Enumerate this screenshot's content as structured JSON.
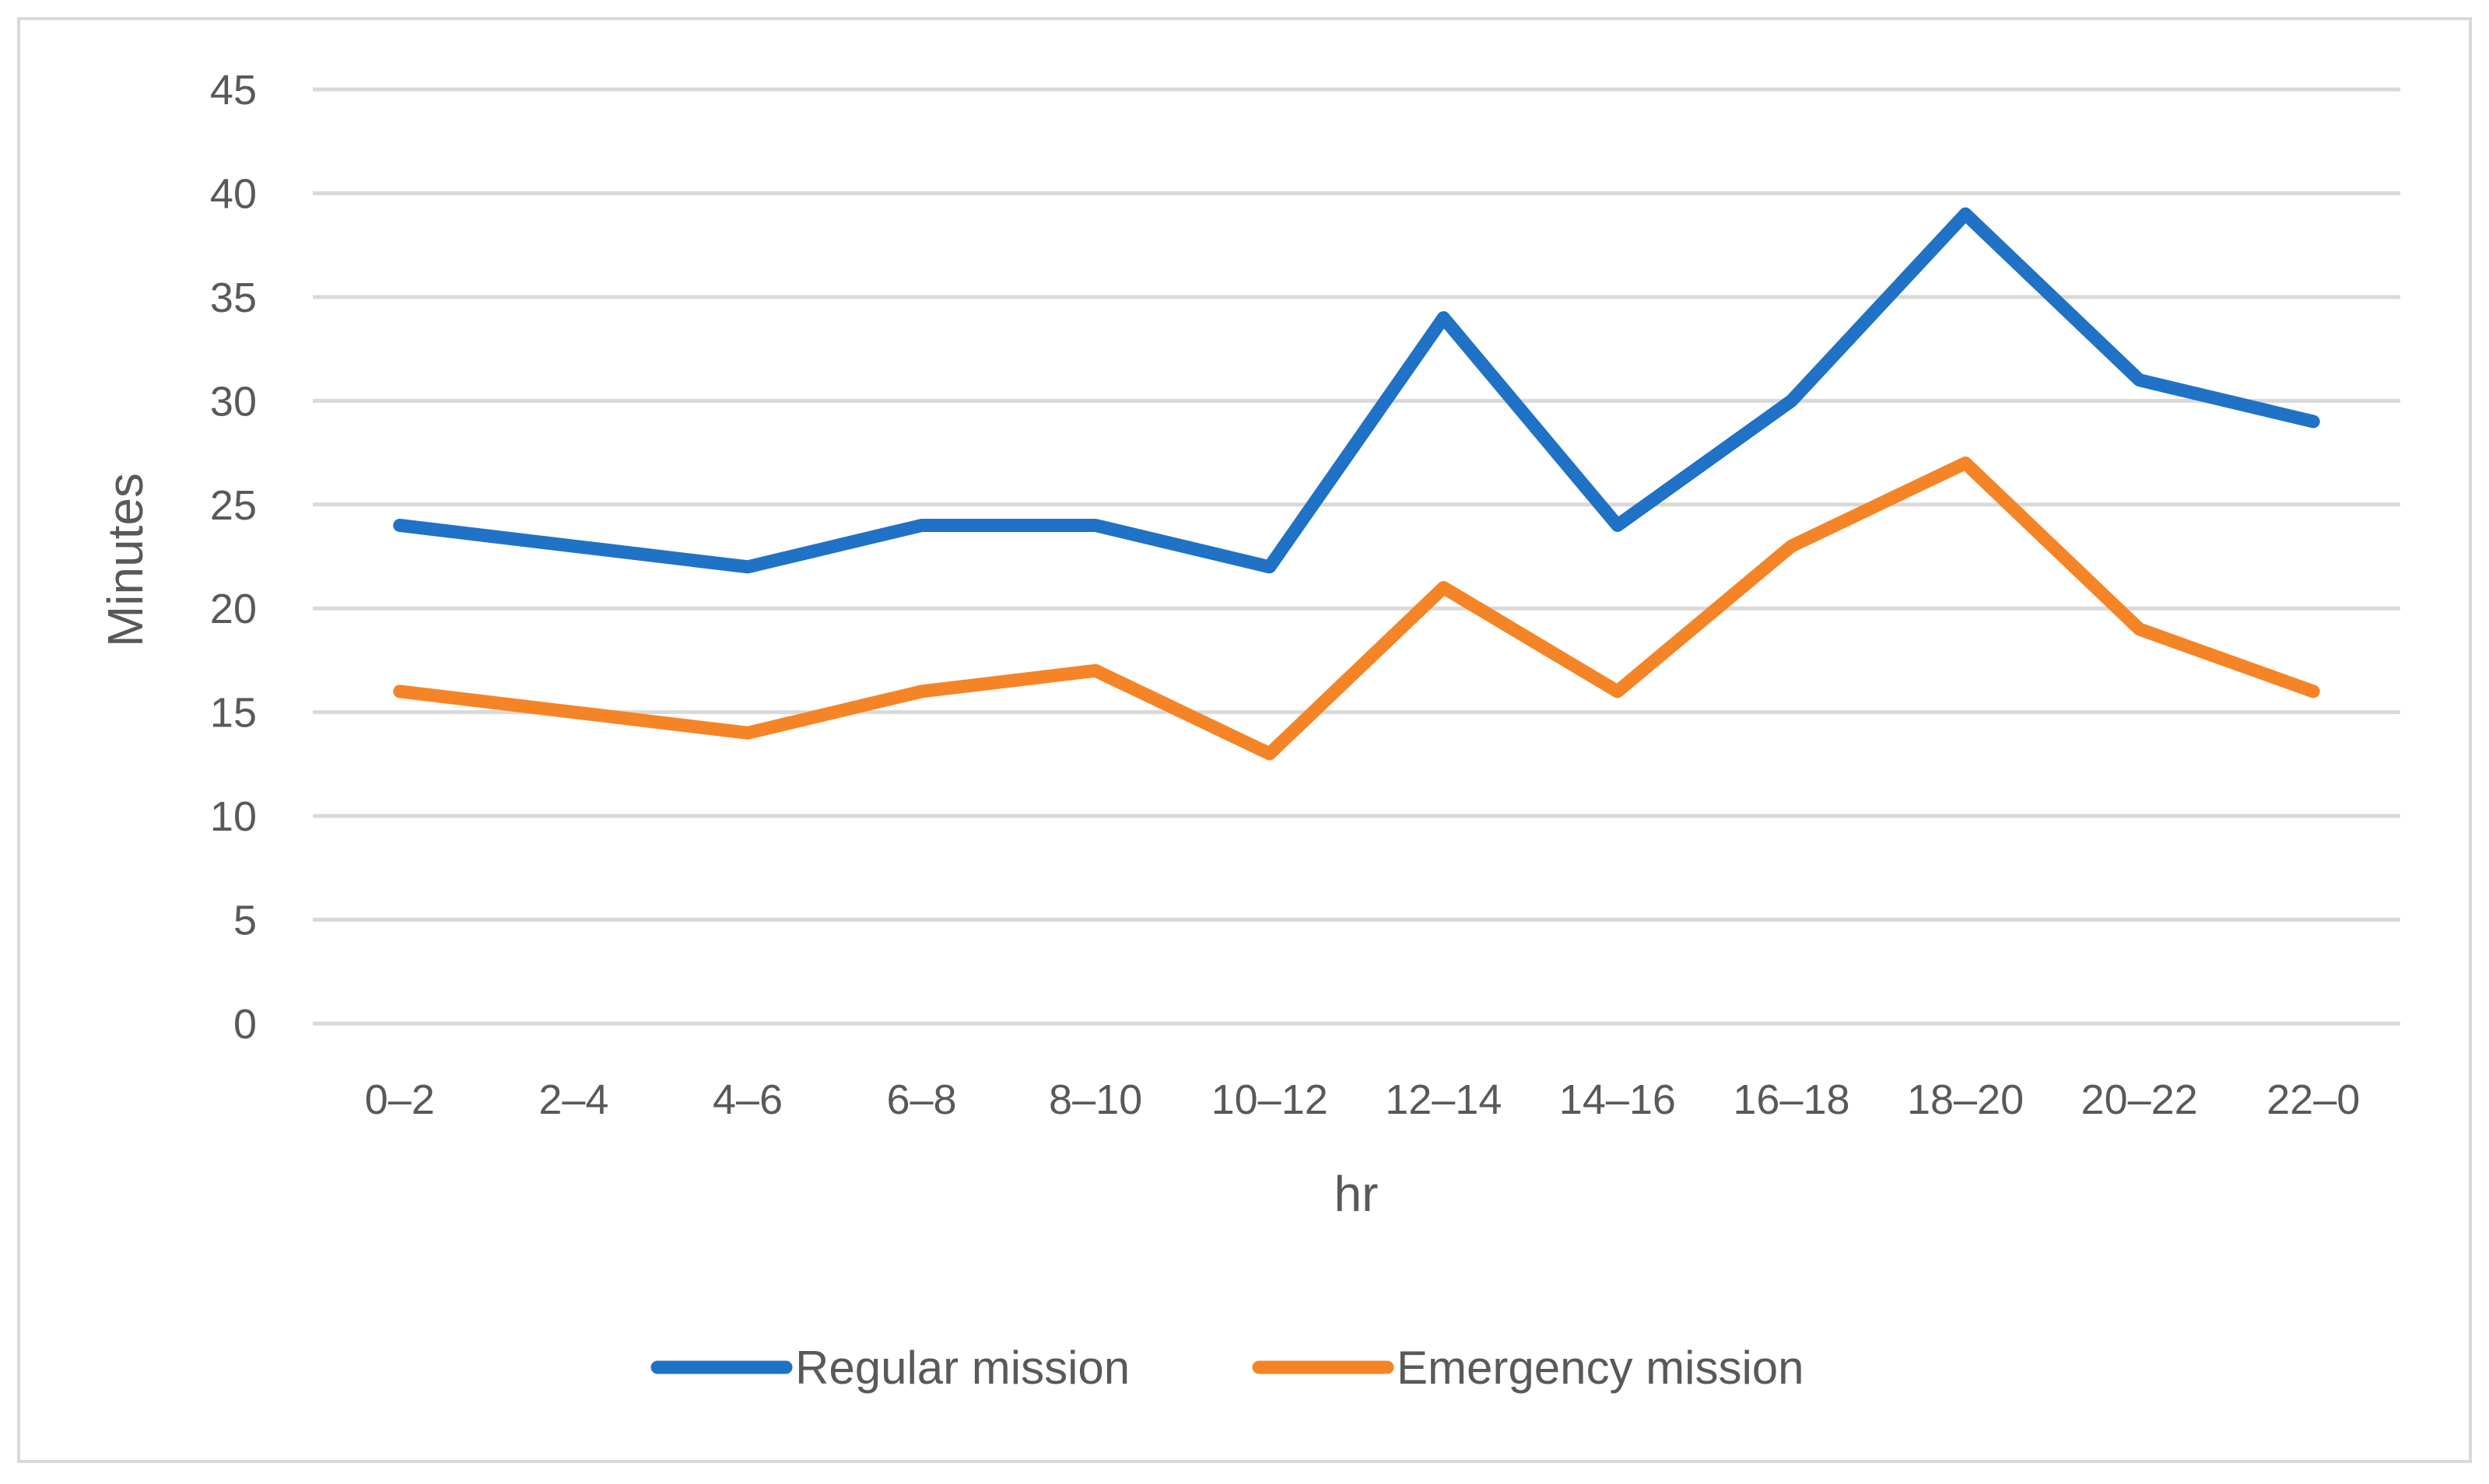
{
  "chart_data": {
    "type": "line",
    "title": "",
    "xlabel": "hr",
    "ylabel": "Minutes",
    "categories": [
      "0–2",
      "2–4",
      "4–6",
      "6–8",
      "8–10",
      "10–12",
      "12–14",
      "14–16",
      "16–18",
      "18–20",
      "20–22",
      "22–0"
    ],
    "ylim": [
      0,
      45
    ],
    "yticks": [
      0,
      5,
      10,
      15,
      20,
      25,
      30,
      35,
      40,
      45
    ],
    "grid": true,
    "legend_position": "bottom",
    "series": [
      {
        "name": "Regular mission",
        "color": "#1f72c6",
        "values": [
          24,
          23,
          22,
          24,
          24,
          22,
          34,
          24,
          30,
          39,
          31,
          29
        ]
      },
      {
        "name": "Emergency mission",
        "color": "#f58426",
        "values": [
          16,
          15,
          14,
          16,
          17,
          13,
          21,
          16,
          23,
          27,
          19,
          16
        ]
      }
    ]
  }
}
